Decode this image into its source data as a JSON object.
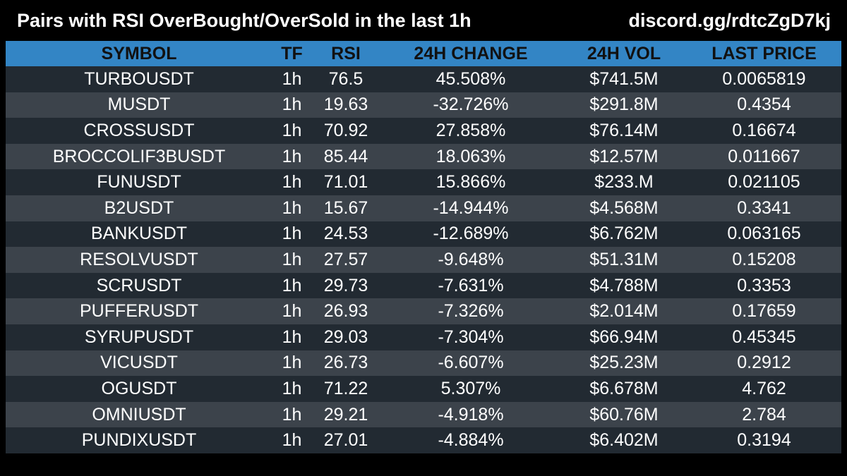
{
  "header": {
    "title": "Pairs with RSI OverBought/OverSold in the last 1h",
    "link": "discord.gg/rdtcZgD7kj"
  },
  "columns": {
    "symbol": "SYMBOL",
    "tf": "TF",
    "rsi": "RSI",
    "change": "24H CHANGE",
    "vol": "24H VOL",
    "price": "LAST PRICE"
  },
  "rows": [
    {
      "symbol": "TURBOUSDT",
      "tf": "1h",
      "rsi": "76.5",
      "change": "45.508%",
      "vol": "$741.5M",
      "price": "0.0065819"
    },
    {
      "symbol": "MUSDT",
      "tf": "1h",
      "rsi": "19.63",
      "change": "-32.726%",
      "vol": "$291.8M",
      "price": "0.4354"
    },
    {
      "symbol": "CROSSUSDT",
      "tf": "1h",
      "rsi": "70.92",
      "change": "27.858%",
      "vol": "$76.14M",
      "price": "0.16674"
    },
    {
      "symbol": "BROCCOLIF3BUSDT",
      "tf": "1h",
      "rsi": "85.44",
      "change": "18.063%",
      "vol": "$12.57M",
      "price": "0.011667"
    },
    {
      "symbol": "FUNUSDT",
      "tf": "1h",
      "rsi": "71.01",
      "change": "15.866%",
      "vol": "$233.M",
      "price": "0.021105"
    },
    {
      "symbol": "B2USDT",
      "tf": "1h",
      "rsi": "15.67",
      "change": "-14.944%",
      "vol": "$4.568M",
      "price": "0.3341"
    },
    {
      "symbol": "BANKUSDT",
      "tf": "1h",
      "rsi": "24.53",
      "change": "-12.689%",
      "vol": "$6.762M",
      "price": "0.063165"
    },
    {
      "symbol": "RESOLVUSDT",
      "tf": "1h",
      "rsi": "27.57",
      "change": "-9.648%",
      "vol": "$51.31M",
      "price": "0.15208"
    },
    {
      "symbol": "SCRUSDT",
      "tf": "1h",
      "rsi": "29.73",
      "change": "-7.631%",
      "vol": "$4.788M",
      "price": "0.3353"
    },
    {
      "symbol": "PUFFERUSDT",
      "tf": "1h",
      "rsi": "26.93",
      "change": "-7.326%",
      "vol": "$2.014M",
      "price": "0.17659"
    },
    {
      "symbol": "SYRUPUSDT",
      "tf": "1h",
      "rsi": "29.03",
      "change": "-7.304%",
      "vol": "$66.94M",
      "price": "0.45345"
    },
    {
      "symbol": "VICUSDT",
      "tf": "1h",
      "rsi": "26.73",
      "change": "-6.607%",
      "vol": "$25.23M",
      "price": "0.2912"
    },
    {
      "symbol": "OGUSDT",
      "tf": "1h",
      "rsi": "71.22",
      "change": "5.307%",
      "vol": "$6.678M",
      "price": "4.762"
    },
    {
      "symbol": "OMNIUSDT",
      "tf": "1h",
      "rsi": "29.21",
      "change": "-4.918%",
      "vol": "$60.76M",
      "price": "2.784"
    },
    {
      "symbol": "PUNDIXUSDT",
      "tf": "1h",
      "rsi": "27.01",
      "change": "-4.884%",
      "vol": "$6.402M",
      "price": "0.3194"
    }
  ],
  "colors": {
    "background": "#000000",
    "header_row": "#3385c5",
    "row_dark": "#222a32",
    "row_light": "#3c434b",
    "text": "#ffffff"
  }
}
